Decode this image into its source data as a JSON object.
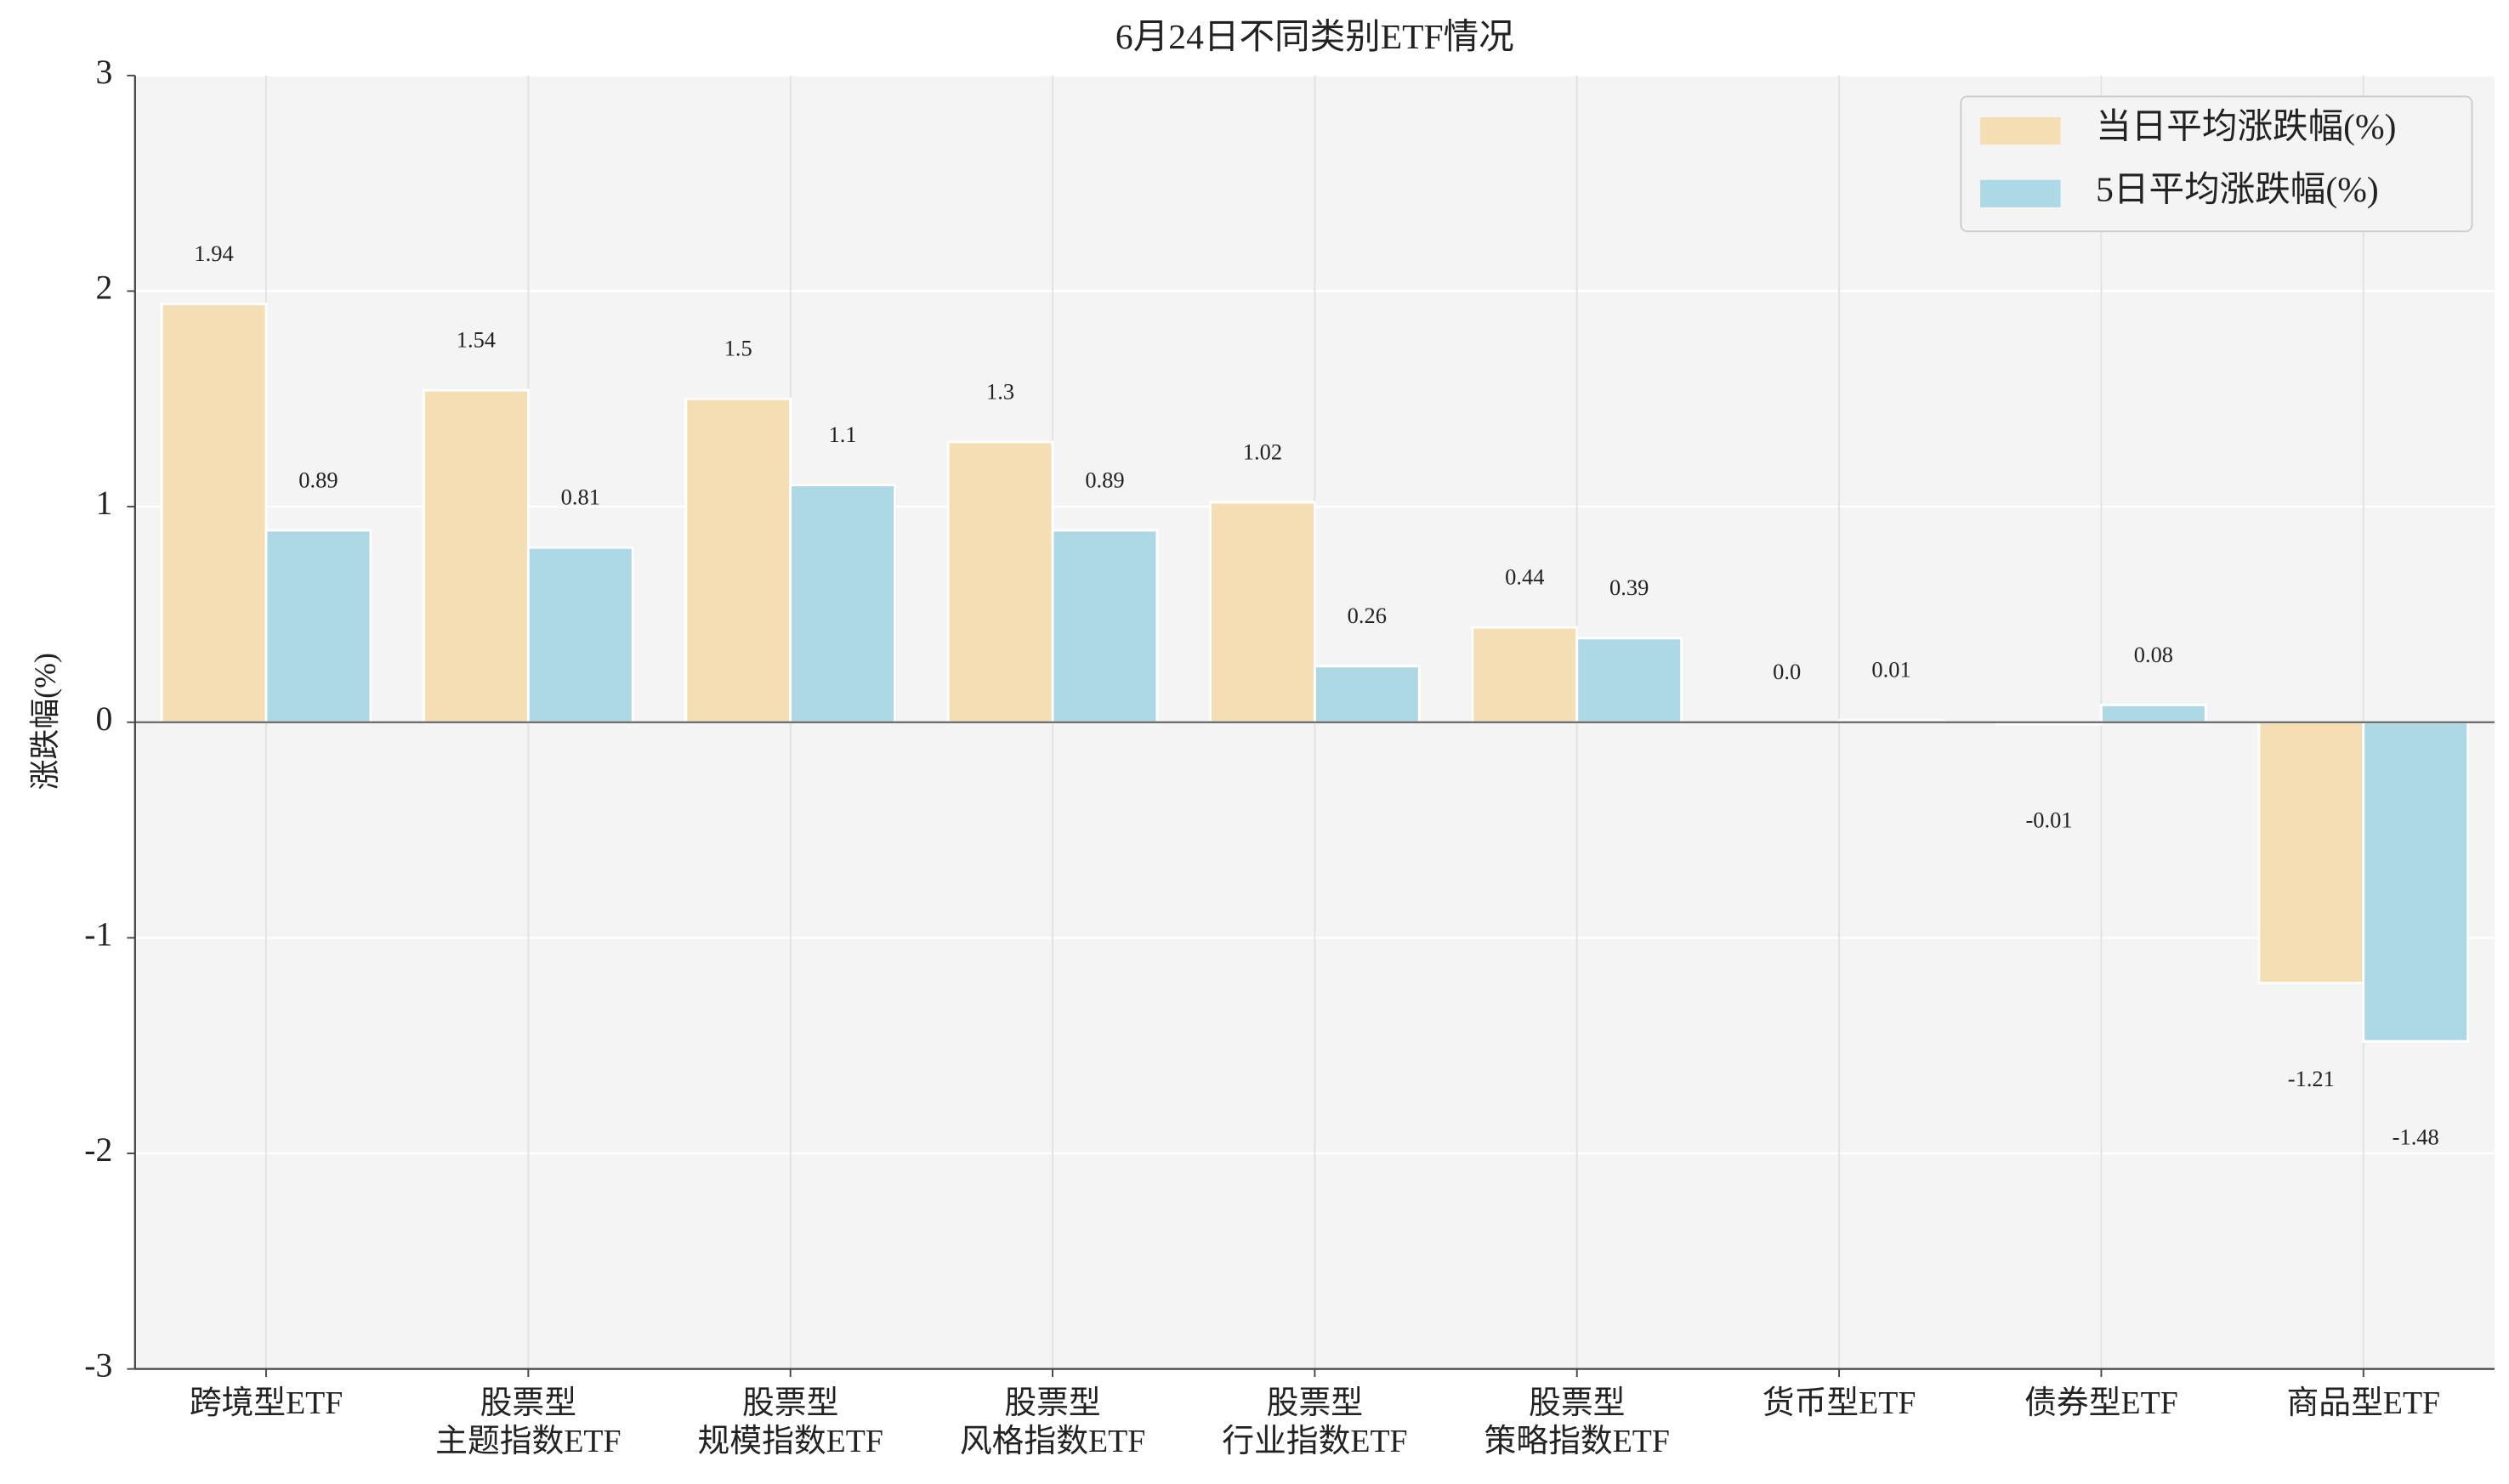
{
  "chart_data": {
    "type": "bar",
    "title": "6月24日不同类别ETF情况",
    "y_label": "涨跌幅(%)",
    "categories": [
      [
        "跨境型ETF"
      ],
      [
        "股票型",
        "主题指数ETF"
      ],
      [
        "股票型",
        "规模指数ETF"
      ],
      [
        "股票型",
        "风格指数ETF"
      ],
      [
        "股票型",
        "行业指数ETF"
      ],
      [
        "股票型",
        "策略指数ETF"
      ],
      [
        "货币型ETF"
      ],
      [
        "债券型ETF"
      ],
      [
        "商品型ETF"
      ]
    ],
    "series": [
      {
        "name": "当日平均涨跌幅(%)",
        "color": "#f5deb3",
        "values": [
          1.94,
          1.54,
          1.5,
          1.3,
          1.02,
          0.44,
          0,
          -0.01,
          -1.21
        ],
        "value_labels": [
          "1.94",
          "1.54",
          "1.5",
          "1.3",
          "1.02",
          "0.44",
          "0.0",
          "-0.01",
          "-1.21"
        ]
      },
      {
        "name": "5日平均涨跌幅(%)",
        "color": "#add8e6",
        "values": [
          0.89,
          0.81,
          1.1,
          0.89,
          0.26,
          0.39,
          0.01,
          0.08,
          -1.48
        ]
      }
    ],
    "ylim": [
      -3,
      3
    ],
    "yticks": [
      -3,
      -2,
      -1,
      0,
      1,
      2,
      3
    ],
    "grid": true,
    "legend": "upper right"
  }
}
